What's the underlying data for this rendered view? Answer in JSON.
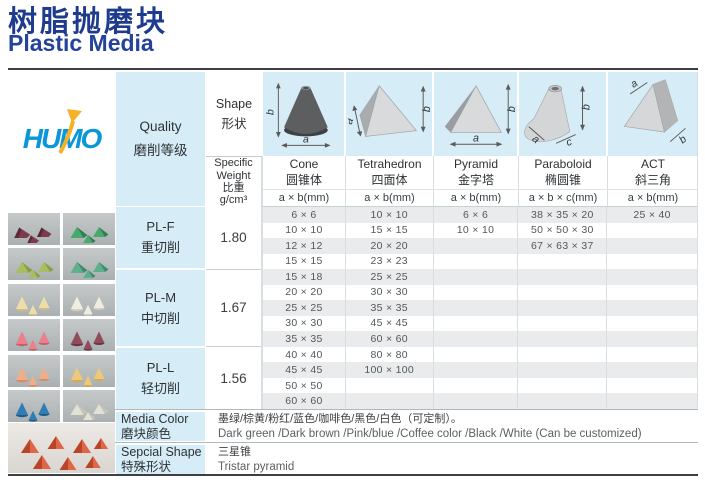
{
  "page": {
    "title_zh": "树脂抛磨块",
    "title_en": "Plastic Media"
  },
  "logo": {
    "brand": "HUMO"
  },
  "header": {
    "quality_en": "Quality",
    "quality_zh": "磨削等级",
    "shape_en": "Shape",
    "shape_zh": "形状",
    "sw_line1": "Specific",
    "sw_line2": "Weight",
    "sw_zh": "比重",
    "sw_unit": "g/cm³"
  },
  "columns": [
    {
      "en": "Cone",
      "zh": "圆锥体",
      "dim": "a × b(mm)",
      "la": "a",
      "lb": "b"
    },
    {
      "en": "Tetrahedron",
      "zh": "四面体",
      "dim": "a × b(mm)",
      "la": "a",
      "lb": "b"
    },
    {
      "en": "Pyramid",
      "zh": "金字塔",
      "dim": "a × b(mm)",
      "la": "a",
      "lb": "b"
    },
    {
      "en": "Paraboloid",
      "zh": "椭圆锥",
      "dim": "a × b × c(mm)",
      "la": "a",
      "lb": "b",
      "lc": "c"
    },
    {
      "en": "ACT",
      "zh": "斜三角",
      "dim": "a × b(mm)",
      "la": "a",
      "lb": "b"
    }
  ],
  "grades": [
    {
      "code": "PL-F",
      "zh": "重切削",
      "weight": "1.80",
      "row_span": 4
    },
    {
      "code": "PL-M",
      "zh": "中切削",
      "weight": "1.67",
      "row_span": 5
    },
    {
      "code": "PL-L",
      "zh": "轻切削",
      "weight": "1.56",
      "row_span": 4
    }
  ],
  "sizes": [
    [
      "6 × 6",
      "10 × 10",
      "6 × 6",
      "38 × 35 × 20",
      "25 × 40"
    ],
    [
      "10 × 10",
      "15 × 15",
      "10 × 10",
      "50 × 50 × 30",
      ""
    ],
    [
      "12 × 12",
      "20 × 20",
      "",
      "67 × 63 × 37",
      ""
    ],
    [
      "15 × 15",
      "23 × 23",
      "",
      "",
      ""
    ],
    [
      "15 × 18",
      "25 × 25",
      "",
      "",
      ""
    ],
    [
      "20 × 20",
      "30 × 30",
      "",
      "",
      ""
    ],
    [
      "25 × 25",
      "35 × 35",
      "",
      "",
      ""
    ],
    [
      "30 × 30",
      "45 × 45",
      "",
      "",
      ""
    ],
    [
      "35 × 35",
      "60 × 60",
      "",
      "",
      ""
    ],
    [
      "40 × 40",
      "80 × 80",
      "",
      "",
      ""
    ],
    [
      "45 × 45",
      "100 × 100",
      "",
      "",
      ""
    ],
    [
      "50 × 50",
      "",
      "",
      "",
      ""
    ],
    [
      "60 × 60",
      "",
      "",
      "",
      ""
    ]
  ],
  "media_color": {
    "label_en": "Media Color",
    "label_zh": "磨块颜色",
    "value_zh": "墨绿/棕黄/粉红/蓝色/咖啡色/黑色/白色（可定制）。",
    "value_en": "Dark green /Dark brown /Pink/blue /Coffee color /Black /White (Can be customized)"
  },
  "special_shape": {
    "label_en": "Sepcial Shape",
    "label_zh": "特殊形状",
    "value_zh": "三星锥",
    "value_en": "Tristar pyramid"
  },
  "photos": {
    "tiles": [
      {
        "shape": "wedge",
        "color": "#7c3b4d",
        "dark": "#5a2938"
      },
      {
        "shape": "pyramid",
        "color": "#4aa86c",
        "dark": "#2e7f4e"
      },
      {
        "shape": "pyramid",
        "color": "#a9bd62",
        "dark": "#86a044"
      },
      {
        "shape": "pyramid",
        "color": "#5fae8e",
        "dark": "#3f8b6d"
      },
      {
        "shape": "cone",
        "color": "#ecddad",
        "dark": "#d2bd84"
      },
      {
        "shape": "cone",
        "color": "#efece0",
        "dark": "#d2cfc0"
      },
      {
        "shape": "cone",
        "color": "#e8808e",
        "dark": "#cc5c6d"
      },
      {
        "shape": "cone",
        "color": "#8e4c5c",
        "dark": "#6d3342"
      },
      {
        "shape": "cone",
        "color": "#efae8a",
        "dark": "#da8a62"
      },
      {
        "shape": "cone",
        "color": "#ecc87a",
        "dark": "#d5aa52"
      },
      {
        "shape": "cone",
        "color": "#2f7db2",
        "dark": "#1d5c8a"
      },
      {
        "shape": "pyramid",
        "color": "#e2e1d6",
        "dark": "#c5c4b7"
      }
    ],
    "big": {
      "shape": "tristar",
      "color": "#dd6747",
      "dark": "#b94527"
    }
  },
  "colors": {
    "title_blue": "#1e3b8e",
    "logo_blue": "#0a96d8",
    "logo_yellow": "#f6b227",
    "cell_blue": "#d6ecf7",
    "stripe_gray": "#e9ebec"
  }
}
